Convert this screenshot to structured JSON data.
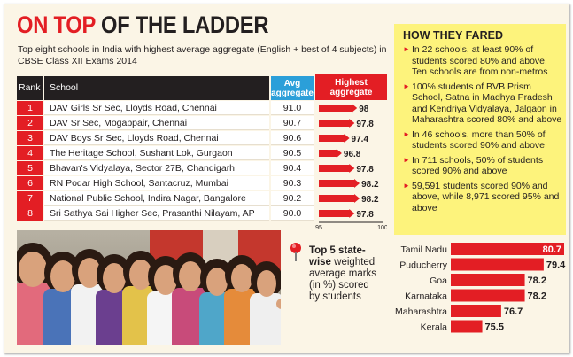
{
  "header": {
    "title_red": "ON TOP ",
    "title_black": "OF THE LADDER",
    "subtitle": "Top eight schools in India with highest average aggregate (English + best of 4 subjects) in CBSE Class XII Exams 2014"
  },
  "table": {
    "headers": {
      "rank": "Rank",
      "school": "School",
      "avg": "Avg aggregate",
      "highest": "Highest aggregate"
    },
    "rows": [
      {
        "rank": "1",
        "school": "DAV Girls Sr Sec, Lloyds Road, Chennai",
        "avg": "91.0",
        "highest": "98"
      },
      {
        "rank": "2",
        "school": "DAV Sr Sec, Mogappair, Chennai",
        "avg": "90.7",
        "highest": "97.8"
      },
      {
        "rank": "3",
        "school": "DAV Boys Sr Sec, Lloyds Road, Chennai",
        "avg": "90.6",
        "highest": "97.4"
      },
      {
        "rank": "4",
        "school": "The Heritage School, Sushant Lok, Gurgaon",
        "avg": "90.5",
        "highest": "96.8"
      },
      {
        "rank": "5",
        "school": "Bhavan's Vidyalaya, Sector 27B, Chandigarh",
        "avg": "90.4",
        "highest": "97.8"
      },
      {
        "rank": "6",
        "school": "RN Podar High School, Santacruz, Mumbai",
        "avg": "90.3",
        "highest": "98.2"
      },
      {
        "rank": "7",
        "school": "National Public School, Indira Nagar, Bangalore",
        "avg": "90.2",
        "highest": "98.2"
      },
      {
        "rank": "8",
        "school": "Sri Sathya Sai Higher Sec, Prasanthi Nilayam, AP",
        "avg": "90.0",
        "highest": "97.8"
      }
    ],
    "axis_min_label": "95",
    "axis_max_label": "100"
  },
  "fared": {
    "title": "HOW THEY FARED",
    "items": [
      "In 22 schools, at least 90% of students scored 80% and above. Ten schools are from non-metros",
      "100% students of BVB Prism School, Satna in Madhya Pradesh and Kendriya Vidyalaya, Jalgaon in Maharashtra scored 80% and above",
      "In 46 schools, more than 50% of students scored 90% and above",
      "In 711 schools, 50% of students scored 90% and above",
      "59,591 students scored 90% and above, while 8,971 scored 95% and above"
    ]
  },
  "state_chart": {
    "title_bold": "Top 5 state-wise",
    "title_rest": "weighted average marks (in %) scored by students"
  },
  "colors": {
    "red": "#e31e24",
    "blue": "#2b9fd9",
    "yellow": "#fdf37c",
    "dark": "#231f20",
    "background": "#fbf5e6"
  },
  "chart_data": [
    {
      "type": "bar",
      "orientation": "horizontal",
      "categories": [
        "DAV Girls Sr Sec, Lloyds Road, Chennai",
        "DAV Sr Sec, Mogappair, Chennai",
        "DAV Boys Sr Sec, Lloyds Road, Chennai",
        "The Heritage School, Sushant Lok, Gurgaon",
        "Bhavan's Vidyalaya, Sector 27B, Chandigarh",
        "RN Podar High School, Santacruz, Mumbai",
        "National Public School, Indira Nagar, Bangalore",
        "Sri Sathya Sai Higher Sec, Prasanthi Nilayam, AP"
      ],
      "values": [
        98,
        97.8,
        97.4,
        96.8,
        97.8,
        98.2,
        98.2,
        97.8
      ],
      "labels": [
        "98",
        "97.8",
        "97.4",
        "96.8",
        "97.8",
        "98.2",
        "98.2",
        "97.8"
      ],
      "xlim": [
        95,
        100
      ],
      "ylabel": "Highest aggregate",
      "bar_color": "#e31e24"
    },
    {
      "type": "bar",
      "orientation": "horizontal",
      "categories": [
        "Tamil Nadu",
        "Puducherry",
        "Goa",
        "Karnataka",
        "Maharashtra",
        "Kerala"
      ],
      "values": [
        80.7,
        79.4,
        78.2,
        78.2,
        76.7,
        75.5
      ],
      "labels": [
        "80.7",
        "79.4",
        "78.2",
        "78.2",
        "76.7",
        "75.5"
      ],
      "bar_color": "#e31e24"
    }
  ]
}
